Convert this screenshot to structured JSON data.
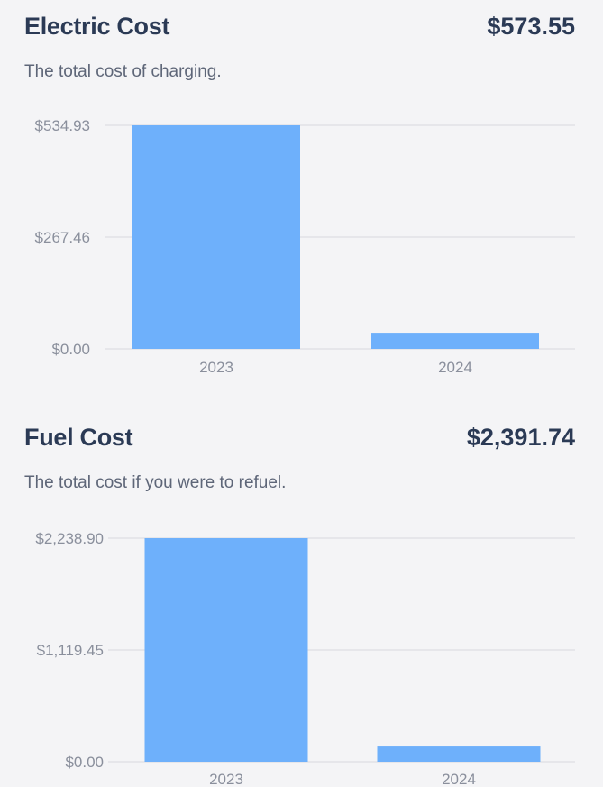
{
  "electric": {
    "title": "Electric Cost",
    "total": "$573.55",
    "subtitle": "The total cost of charging.",
    "chart_data": {
      "type": "bar",
      "categories": [
        "2023",
        "2024"
      ],
      "values": [
        534.93,
        38.62
      ],
      "yticks": [
        534.93,
        267.46,
        0
      ],
      "ytick_labels": [
        "$534.93",
        "$267.46",
        "$0.00"
      ],
      "ylim": [
        0,
        534.93
      ],
      "grid": true,
      "bar_color": "#6eb0fb"
    }
  },
  "fuel": {
    "title": "Fuel Cost",
    "total": "$2,391.74",
    "subtitle": "The total cost if you were to refuel.",
    "chart_data": {
      "type": "bar",
      "categories": [
        "2023",
        "2024"
      ],
      "values": [
        2238.9,
        152.84
      ],
      "yticks": [
        2238.9,
        1119.45,
        0
      ],
      "ytick_labels": [
        "$2,238.90",
        "$1,119.45",
        "$0.00"
      ],
      "ylim": [
        0,
        2238.9
      ],
      "grid": true,
      "bar_color": "#6eb0fb"
    }
  }
}
